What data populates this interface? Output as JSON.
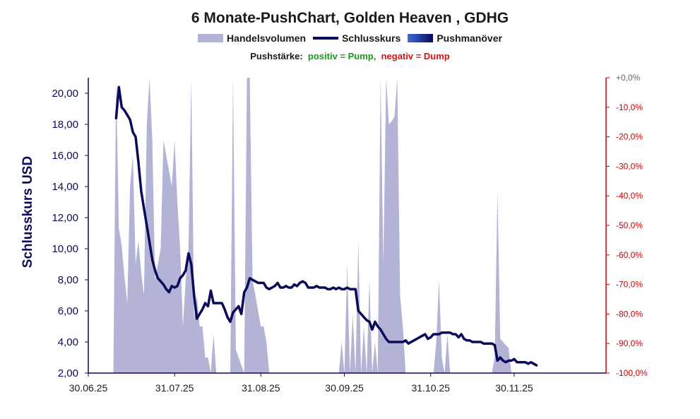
{
  "title": "6 Monate-PushChart, Golden Heaven , GDHG",
  "legend": {
    "volume": "Handelsvolumen",
    "close": "Schlusskurs",
    "push": "Pushmanöver"
  },
  "push_strength": {
    "label": "Pushstärke:",
    "positive": "positiv = Pump,",
    "negative": "negativ = Dump"
  },
  "colors": {
    "volume": "#b3b3d6",
    "close_line": "#0a0a5a",
    "left_axis": "#0a0a5a",
    "right_axis": "#cc0000",
    "positive": "#1a9a1a",
    "negative": "#e01010"
  },
  "chart_data": {
    "type": "line",
    "title": "6 Monate-PushChart, Golden Heaven , GDHG",
    "ylabel": "Schlusskurs USD",
    "ylim": [
      2,
      21
    ],
    "y_ticks": [
      "2,00",
      "4,00",
      "6,00",
      "8,00",
      "10,00",
      "12,00",
      "14,00",
      "16,00",
      "18,00",
      "20,00"
    ],
    "y2lim": [
      -100,
      0
    ],
    "y2_ticks": [
      "+0,0%",
      "-10,0%",
      "-20,0%",
      "-30,0%",
      "-40,0%",
      "-50,0%",
      "-60,0%",
      "-70,0%",
      "-80,0%",
      "-90,0%",
      "-100,0%"
    ],
    "x_ticks": [
      {
        "day": 0,
        "label": "30.06.25"
      },
      {
        "day": 31,
        "label": "31.07.25"
      },
      {
        "day": 62,
        "label": "31.08.25"
      },
      {
        "day": 92,
        "label": "30.09.25"
      },
      {
        "day": 123,
        "label": "31.10.25"
      },
      {
        "day": 153,
        "label": "30.11.25"
      }
    ],
    "xlim": [
      0,
      186
    ],
    "series": [
      {
        "name": "Schlusskurs",
        "points": [
          [
            10,
            18.4
          ],
          [
            11,
            20.4
          ],
          [
            12,
            19.1
          ],
          [
            13,
            18.9
          ],
          [
            14,
            18.6
          ],
          [
            15,
            18.3
          ],
          [
            16,
            17.5
          ],
          [
            17,
            17.2
          ],
          [
            18,
            15.6
          ],
          [
            19,
            13.7
          ],
          [
            20,
            12.6
          ],
          [
            21,
            11.5
          ],
          [
            22,
            10.4
          ],
          [
            23,
            9.3
          ],
          [
            24,
            8.6
          ],
          [
            25,
            8.1
          ],
          [
            26,
            7.9
          ],
          [
            27,
            7.7
          ],
          [
            28,
            7.4
          ],
          [
            29,
            7.2
          ],
          [
            30,
            7.6
          ],
          [
            31,
            7.5
          ],
          [
            32,
            7.6
          ],
          [
            33,
            8.1
          ],
          [
            34,
            8.3
          ],
          [
            35,
            8.6
          ],
          [
            36,
            9.7
          ],
          [
            37,
            9.0
          ],
          [
            38,
            7.0
          ],
          [
            39,
            5.5
          ],
          [
            40,
            5.8
          ],
          [
            41,
            6.1
          ],
          [
            42,
            6.5
          ],
          [
            43,
            6.3
          ],
          [
            44,
            7.3
          ],
          [
            45,
            6.5
          ],
          [
            46,
            6.5
          ],
          [
            47,
            6.5
          ],
          [
            48,
            6.5
          ],
          [
            49,
            6.1
          ],
          [
            50,
            5.6
          ],
          [
            51,
            5.3
          ],
          [
            52,
            5.9
          ],
          [
            53,
            6.1
          ],
          [
            54,
            6.3
          ],
          [
            55,
            5.8
          ],
          [
            56,
            7.2
          ],
          [
            57,
            7.5
          ],
          [
            58,
            8.1
          ],
          [
            59,
            8.0
          ],
          [
            60,
            7.9
          ],
          [
            61,
            7.8
          ],
          [
            62,
            7.8
          ],
          [
            63,
            7.8
          ],
          [
            64,
            7.5
          ],
          [
            65,
            7.4
          ],
          [
            66,
            7.5
          ],
          [
            67,
            7.6
          ],
          [
            68,
            7.8
          ],
          [
            69,
            7.5
          ],
          [
            70,
            7.5
          ],
          [
            71,
            7.6
          ],
          [
            72,
            7.5
          ],
          [
            73,
            7.5
          ],
          [
            74,
            7.7
          ],
          [
            75,
            7.6
          ],
          [
            76,
            7.8
          ],
          [
            77,
            7.9
          ],
          [
            78,
            7.8
          ],
          [
            79,
            7.5
          ],
          [
            80,
            7.5
          ],
          [
            81,
            7.5
          ],
          [
            82,
            7.6
          ],
          [
            83,
            7.5
          ],
          [
            84,
            7.5
          ],
          [
            85,
            7.5
          ],
          [
            86,
            7.4
          ],
          [
            87,
            7.4
          ],
          [
            88,
            7.5
          ],
          [
            89,
            7.4
          ],
          [
            90,
            7.5
          ],
          [
            91,
            7.4
          ],
          [
            92,
            7.4
          ],
          [
            93,
            7.5
          ],
          [
            94,
            7.4
          ],
          [
            95,
            7.4
          ],
          [
            96,
            7.4
          ],
          [
            97,
            6.0
          ],
          [
            98,
            5.8
          ],
          [
            99,
            5.6
          ],
          [
            100,
            5.4
          ],
          [
            101,
            5.3
          ],
          [
            102,
            4.8
          ],
          [
            103,
            5.3
          ],
          [
            104,
            5.0
          ],
          [
            105,
            4.8
          ],
          [
            106,
            4.5
          ],
          [
            107,
            4.2
          ],
          [
            108,
            4.0
          ],
          [
            109,
            4.0
          ],
          [
            110,
            4.0
          ],
          [
            111,
            4.0
          ],
          [
            112,
            4.0
          ],
          [
            113,
            4.0
          ],
          [
            114,
            4.1
          ],
          [
            115,
            3.9
          ],
          [
            116,
            4.0
          ],
          [
            117,
            4.1
          ],
          [
            118,
            4.2
          ],
          [
            119,
            4.3
          ],
          [
            120,
            4.4
          ],
          [
            121,
            4.5
          ],
          [
            122,
            4.2
          ],
          [
            123,
            4.3
          ],
          [
            124,
            4.5
          ],
          [
            125,
            4.5
          ],
          [
            126,
            4.5
          ],
          [
            127,
            4.6
          ],
          [
            128,
            4.6
          ],
          [
            129,
            4.6
          ],
          [
            130,
            4.6
          ],
          [
            131,
            4.5
          ],
          [
            132,
            4.5
          ],
          [
            133,
            4.3
          ],
          [
            134,
            4.5
          ],
          [
            135,
            4.2
          ],
          [
            136,
            4.1
          ],
          [
            137,
            4.1
          ],
          [
            138,
            4.0
          ],
          [
            139,
            4.0
          ],
          [
            140,
            4.0
          ],
          [
            141,
            4.0
          ],
          [
            142,
            3.9
          ],
          [
            143,
            3.9
          ],
          [
            144,
            3.9
          ],
          [
            145,
            3.9
          ],
          [
            146,
            3.8
          ],
          [
            147,
            2.8
          ],
          [
            148,
            3.0
          ],
          [
            149,
            2.8
          ],
          [
            150,
            2.7
          ],
          [
            151,
            2.8
          ],
          [
            152,
            2.8
          ],
          [
            153,
            2.9
          ],
          [
            154,
            2.7
          ],
          [
            155,
            2.7
          ],
          [
            156,
            2.7
          ],
          [
            157,
            2.7
          ],
          [
            158,
            2.6
          ],
          [
            159,
            2.7
          ],
          [
            160,
            2.6
          ],
          [
            161,
            2.5
          ]
        ]
      },
      {
        "name": "Handelsvolumen",
        "points": [
          [
            9,
            0
          ],
          [
            10,
            21
          ],
          [
            11,
            11.3
          ],
          [
            12,
            10.2
          ],
          [
            13,
            8.2
          ],
          [
            14,
            6.5
          ],
          [
            15,
            14
          ],
          [
            16,
            16
          ],
          [
            17,
            9
          ],
          [
            18,
            10.5
          ],
          [
            19,
            8.5
          ],
          [
            20,
            7
          ],
          [
            21,
            18
          ],
          [
            22,
            21
          ],
          [
            23,
            17
          ],
          [
            24,
            8
          ],
          [
            25,
            9
          ],
          [
            26,
            10
          ],
          [
            27,
            17
          ],
          [
            28,
            16
          ],
          [
            29,
            15
          ],
          [
            30,
            14
          ],
          [
            31,
            17
          ],
          [
            32,
            13
          ],
          [
            33,
            10
          ],
          [
            34,
            5
          ],
          [
            35,
            8
          ],
          [
            36,
            10
          ],
          [
            37,
            21
          ],
          [
            38,
            5.5
          ],
          [
            39,
            7
          ],
          [
            40,
            5
          ],
          [
            41,
            5
          ],
          [
            42,
            3
          ],
          [
            43,
            3
          ],
          [
            44,
            2
          ],
          [
            45,
            4.5
          ],
          [
            46,
            2
          ],
          [
            47,
            2
          ],
          [
            48,
            2
          ],
          [
            49,
            2
          ],
          [
            50,
            2
          ],
          [
            51,
            2
          ],
          [
            52,
            21
          ],
          [
            53,
            3.5
          ],
          [
            54,
            3
          ],
          [
            55,
            2.5
          ],
          [
            56,
            2
          ],
          [
            57,
            21
          ],
          [
            58,
            21
          ],
          [
            59,
            8
          ],
          [
            60,
            7
          ],
          [
            61,
            6
          ],
          [
            62,
            5
          ],
          [
            63,
            5
          ],
          [
            64,
            4
          ],
          [
            65,
            2
          ],
          [
            90,
            2
          ],
          [
            91,
            4
          ],
          [
            92,
            2
          ],
          [
            93,
            9
          ],
          [
            94,
            2
          ],
          [
            95,
            5.8
          ],
          [
            96,
            2
          ],
          [
            97,
            10.5
          ],
          [
            98,
            2
          ],
          [
            99,
            5
          ],
          [
            100,
            2
          ],
          [
            101,
            8
          ],
          [
            102,
            2
          ],
          [
            103,
            4
          ],
          [
            104,
            2
          ],
          [
            105,
            21
          ],
          [
            106,
            9
          ],
          [
            107,
            21
          ],
          [
            108,
            18
          ],
          [
            109,
            18.2
          ],
          [
            110,
            18.5
          ],
          [
            111,
            21
          ],
          [
            112,
            7
          ],
          [
            113,
            5
          ],
          [
            114,
            2
          ],
          [
            124,
            2
          ],
          [
            125,
            4
          ],
          [
            126,
            8
          ],
          [
            127,
            3
          ],
          [
            128,
            2
          ],
          [
            129,
            4.5
          ],
          [
            130,
            2
          ],
          [
            145,
            2
          ],
          [
            146,
            3
          ],
          [
            147,
            13.7
          ],
          [
            148,
            4.2
          ],
          [
            149,
            4
          ],
          [
            150,
            3.8
          ],
          [
            151,
            3.6
          ],
          [
            152,
            2
          ],
          [
            186,
            2
          ]
        ]
      }
    ]
  }
}
